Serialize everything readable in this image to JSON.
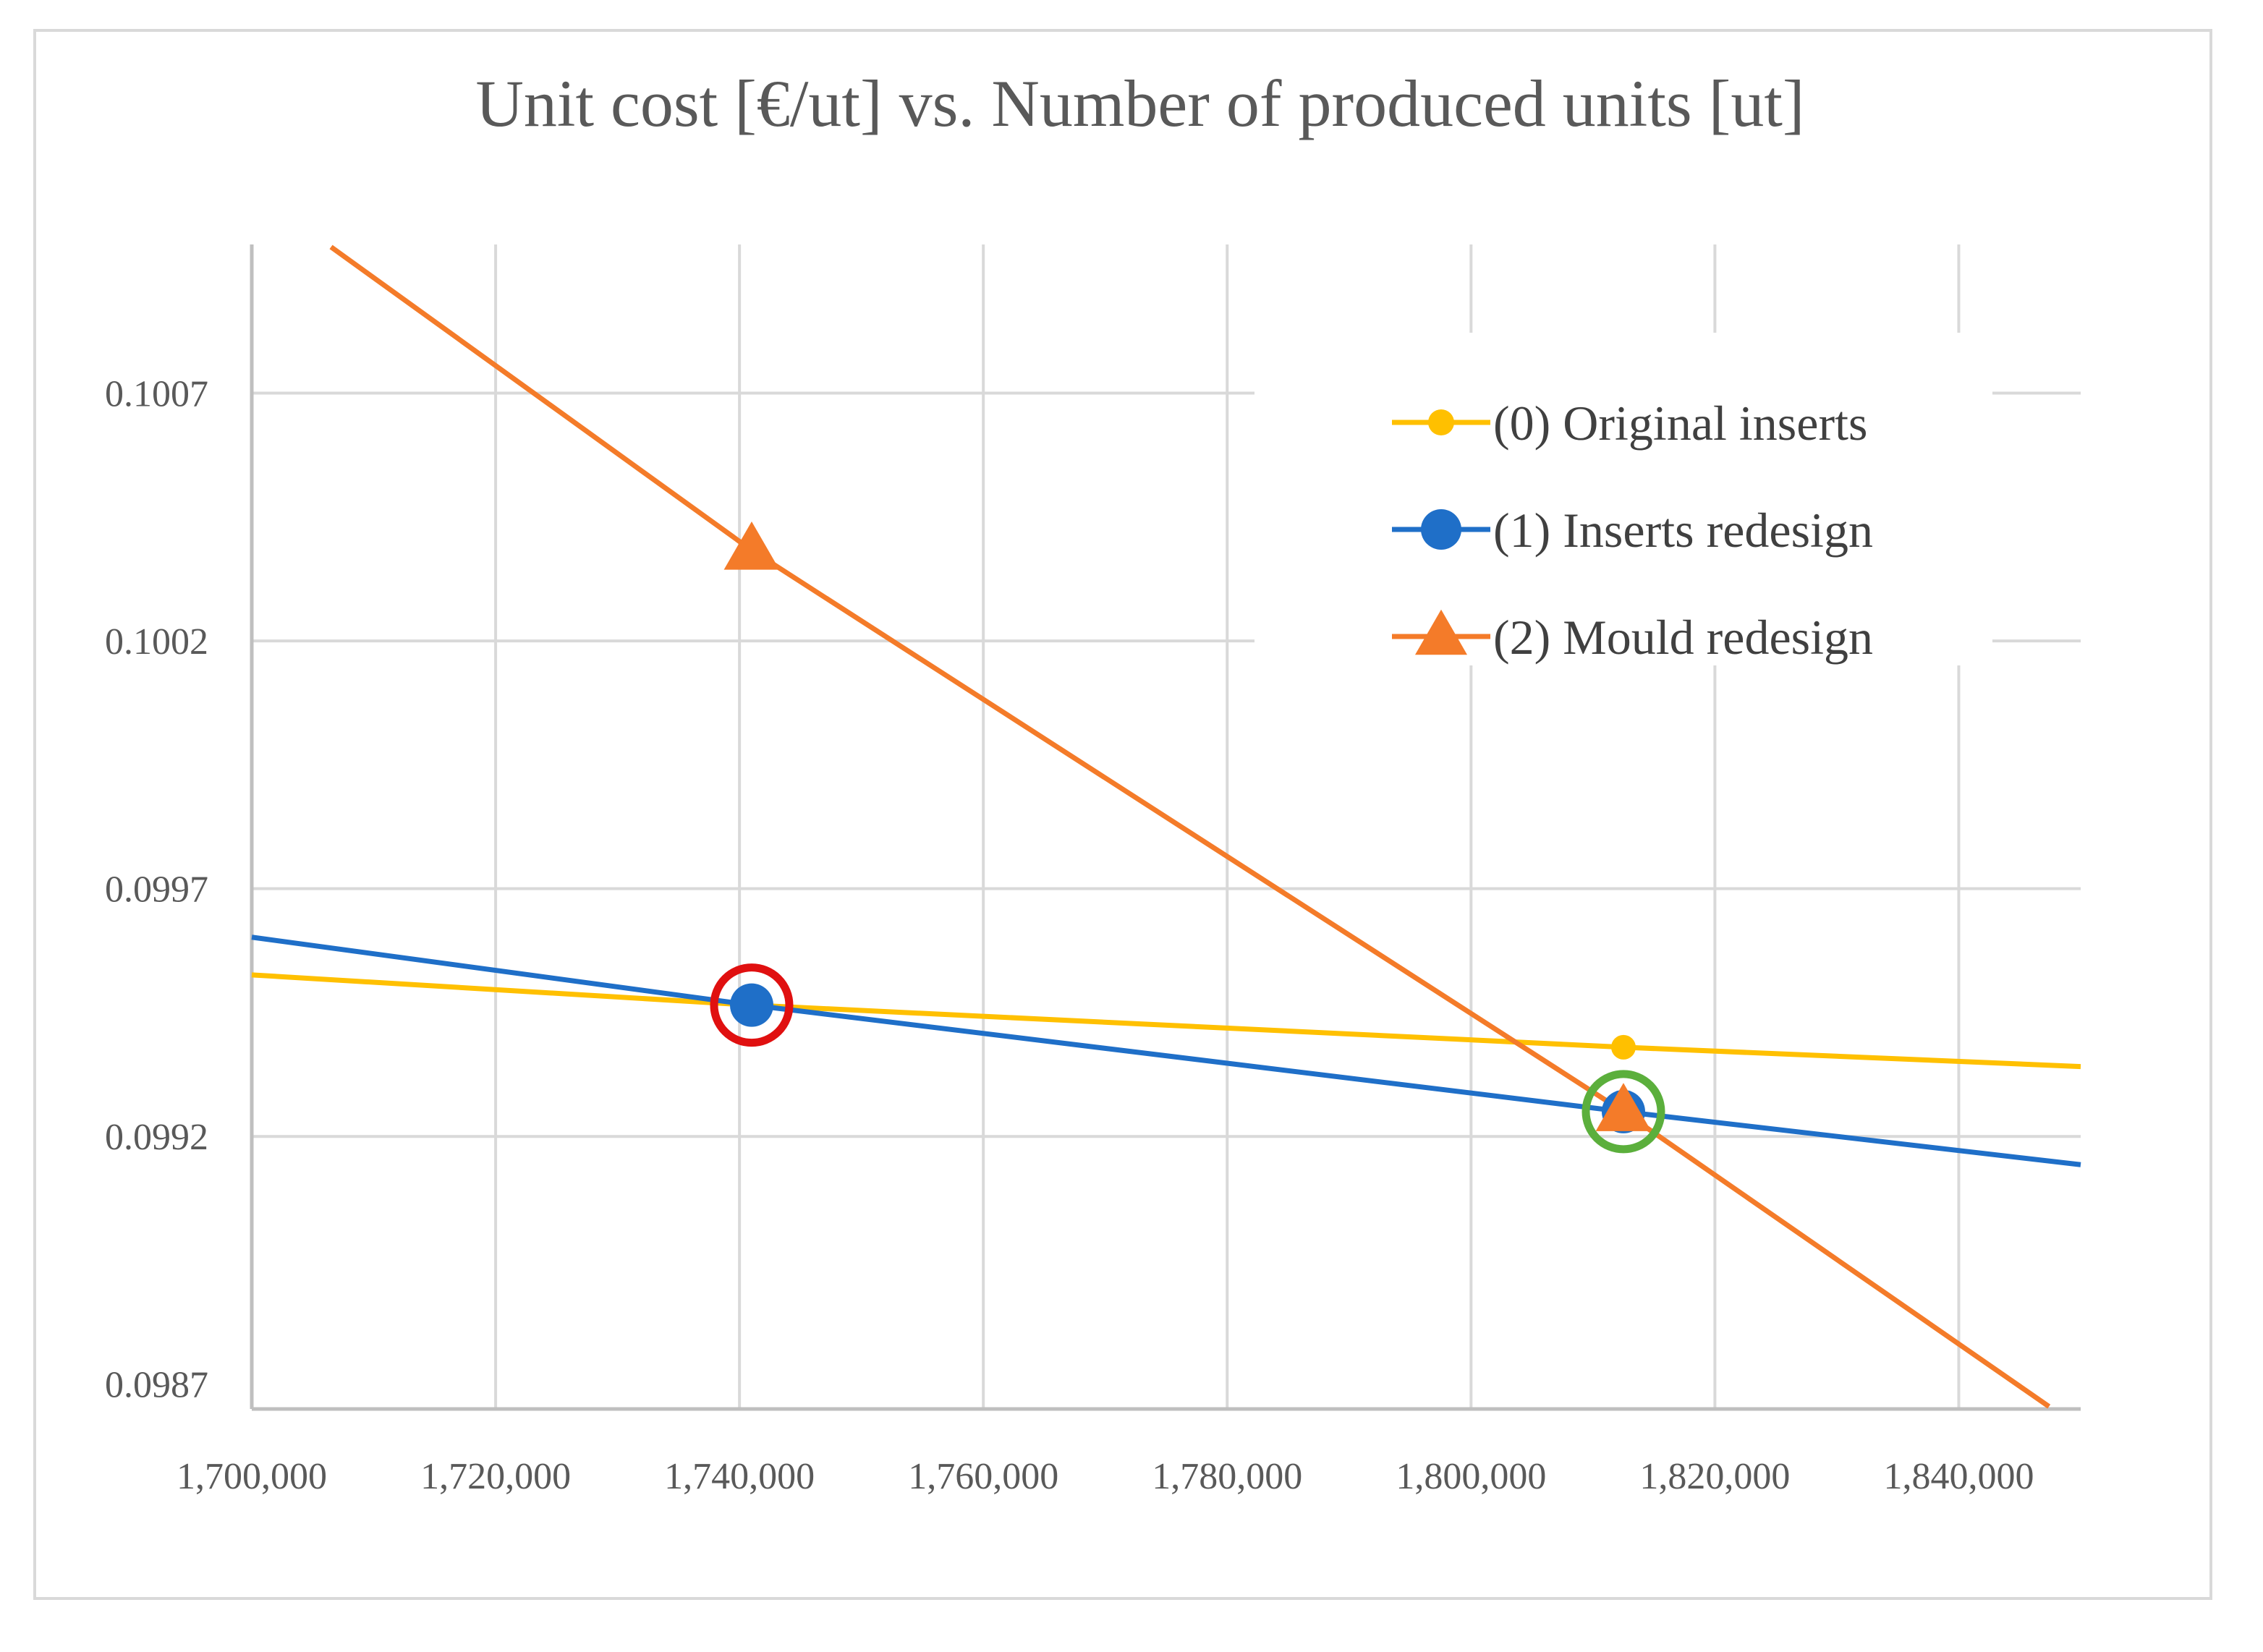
{
  "chart_data": {
    "type": "line",
    "title": "Unit cost [€/ut] vs. Number of produced units [ut]",
    "xlabel": "",
    "ylabel": "",
    "xlim": [
      1700000,
      1850000
    ],
    "ylim": [
      0.09865,
      0.101
    ],
    "x_ticks": [
      1700000,
      1720000,
      1740000,
      1760000,
      1780000,
      1800000,
      1820000,
      1840000
    ],
    "x_tick_labels": [
      "1,700,000",
      "1,720,000",
      "1,740,000",
      "1,760,000",
      "1,780,000",
      "1,800,000",
      "1,820,000",
      "1,840,000"
    ],
    "y_ticks": [
      0.0987,
      0.0992,
      0.0997,
      0.1002,
      0.1007
    ],
    "y_tick_labels": [
      "0.0987",
      "0.0992",
      "0.0997",
      "0.1002",
      "0.1007"
    ],
    "grid": true,
    "legend_position": "top-right",
    "series": [
      {
        "name": "(0) Original inserts",
        "color": "#FFC000",
        "marker": "circle",
        "line": [
          [
            1700000,
            0.099526
          ],
          [
            1741000,
            0.099465
          ],
          [
            1812500,
            0.09938
          ],
          [
            1850000,
            0.099341
          ]
        ],
        "markers": [
          [
            1812500,
            0.09938
          ]
        ]
      },
      {
        "name": "(1) Inserts redesign",
        "color": "#1F6FC8",
        "marker": "circle",
        "line": [
          [
            1700000,
            0.099602
          ],
          [
            1741000,
            0.099465
          ],
          [
            1812500,
            0.09925
          ],
          [
            1850000,
            0.099143
          ]
        ],
        "markers": [
          [
            1741000,
            0.099465
          ],
          [
            1812500,
            0.09925
          ]
        ]
      },
      {
        "name": "(2) Mould redesign",
        "color": "#F47B29",
        "marker": "triangle",
        "line": [
          [
            1706500,
            0.100995
          ],
          [
            1741000,
            0.100383
          ],
          [
            1812500,
            0.09925
          ],
          [
            1847400,
            0.098655
          ]
        ],
        "markers": [
          [
            1741000,
            0.100383
          ],
          [
            1812500,
            0.09925
          ]
        ]
      }
    ],
    "annotations": [
      {
        "shape": "circle",
        "color": "#E01010",
        "x": 1741000,
        "y": 0.099465
      },
      {
        "shape": "circle",
        "color": "#5BAF3C",
        "x": 1812500,
        "y": 0.09925
      }
    ],
    "gridline_color": "#d9d9d9",
    "axis_color": "#bfbfbf"
  }
}
